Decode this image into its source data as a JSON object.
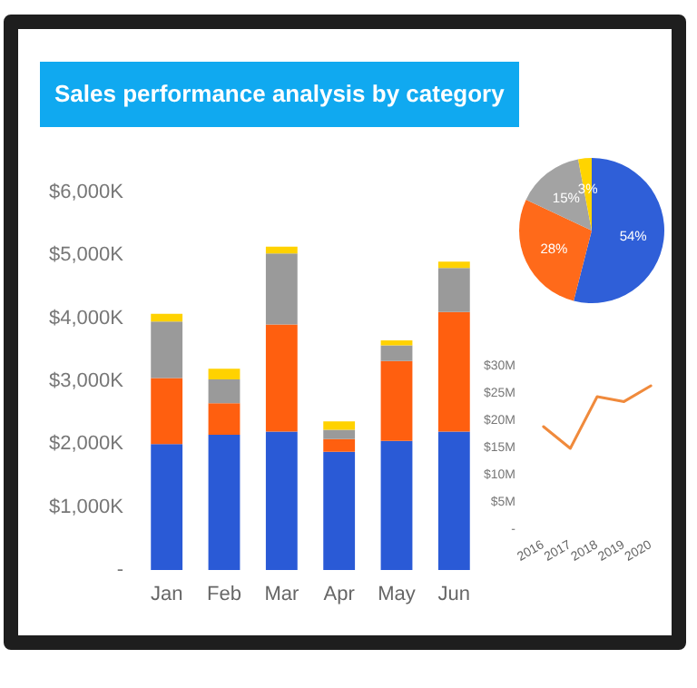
{
  "chart_data": [
    {
      "type": "bar",
      "title": "Sales performance analysis by category",
      "categories": [
        "Jan",
        "Feb",
        "Mar",
        "Apr",
        "May",
        "Jun"
      ],
      "stacked": true,
      "series": [
        {
          "color": "#2a5ad6",
          "values": [
            2000,
            2150,
            2200,
            1880,
            2050,
            2200
          ]
        },
        {
          "color": "#ff5f0f",
          "values": [
            1050,
            500,
            1700,
            200,
            1270,
            1900
          ]
        },
        {
          "color": "#9a9a9a",
          "values": [
            900,
            380,
            1130,
            150,
            250,
            700
          ]
        },
        {
          "color": "#ffd200",
          "values": [
            120,
            170,
            110,
            130,
            80,
            100
          ]
        }
      ],
      "ylim": [
        0,
        6000
      ],
      "yticks": [
        {
          "value": 0,
          "label": "-"
        },
        {
          "value": 1000,
          "label": "$1,000K"
        },
        {
          "value": 2000,
          "label": "$2,000K"
        },
        {
          "value": 3000,
          "label": "$3,000K"
        },
        {
          "value": 4000,
          "label": "$4,000K"
        },
        {
          "value": 5000,
          "label": "$5,000K"
        },
        {
          "value": 6000,
          "label": "$6,000K"
        }
      ]
    },
    {
      "type": "pie",
      "categories": [
        null,
        null,
        null,
        null
      ],
      "values": [
        54,
        28,
        15,
        3
      ],
      "colors": [
        "#2f5fd8",
        "#ff6a1a",
        "#a3a3a3",
        "#ffd400"
      ],
      "value_labels": [
        "54%",
        "28%",
        "15%",
        "3%"
      ]
    },
    {
      "type": "line",
      "categories": [
        "2016",
        "2017",
        "2018",
        "2019",
        "2020"
      ],
      "marker": "none",
      "series": [
        {
          "color": "#f08a3c",
          "values": [
            19,
            15,
            24.5,
            23.6,
            26.5
          ]
        }
      ],
      "ylim": [
        0,
        30
      ],
      "yticks": [
        {
          "value": 0,
          "label": "-"
        },
        {
          "value": 5,
          "label": "$5M"
        },
        {
          "value": 10,
          "label": "$10M"
        },
        {
          "value": 15,
          "label": "$15M"
        },
        {
          "value": 20,
          "label": "$20M"
        },
        {
          "value": 25,
          "label": "$25M"
        },
        {
          "value": 30,
          "label": "$30M"
        }
      ]
    }
  ]
}
